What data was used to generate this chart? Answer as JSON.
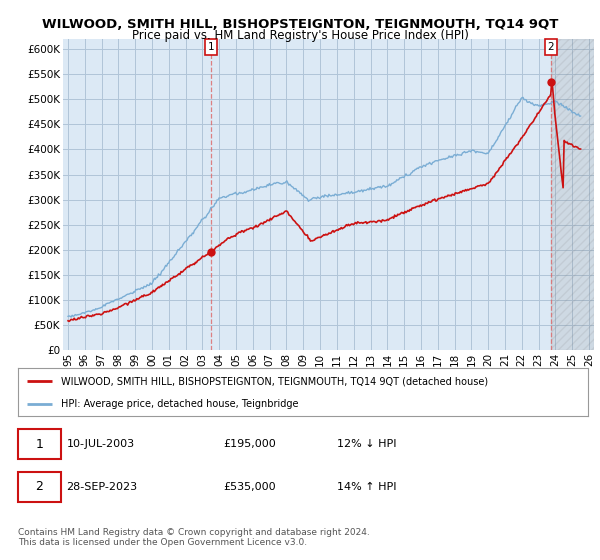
{
  "title": "WILWOOD, SMITH HILL, BISHOPSTEIGNTON, TEIGNMOUTH, TQ14 9QT",
  "subtitle": "Price paid vs. HM Land Registry's House Price Index (HPI)",
  "ylabel_ticks": [
    "£0",
    "£50K",
    "£100K",
    "£150K",
    "£200K",
    "£250K",
    "£300K",
    "£350K",
    "£400K",
    "£450K",
    "£500K",
    "£550K",
    "£600K"
  ],
  "ytick_values": [
    0,
    50000,
    100000,
    150000,
    200000,
    250000,
    300000,
    350000,
    400000,
    450000,
    500000,
    550000,
    600000
  ],
  "ylim": [
    0,
    620000
  ],
  "xlim_start": 1994.7,
  "xlim_end": 2026.3,
  "xtick_years": [
    1995,
    1996,
    1997,
    1998,
    1999,
    2000,
    2001,
    2002,
    2003,
    2004,
    2005,
    2006,
    2007,
    2008,
    2009,
    2010,
    2011,
    2012,
    2013,
    2014,
    2015,
    2016,
    2017,
    2018,
    2019,
    2020,
    2021,
    2022,
    2023,
    2024,
    2025,
    2026
  ],
  "purchase1_year": 2003.53,
  "purchase1_price": 195000,
  "purchase1_label": "1",
  "purchase2_year": 2023.74,
  "purchase2_price": 535000,
  "purchase2_label": "2",
  "legend_line1": "WILWOOD, SMITH HILL, BISHOPSTEIGNTON, TEIGNMOUTH, TQ14 9QT (detached house)",
  "legend_line2": "HPI: Average price, detached house, Teignbridge",
  "footer": "Contains HM Land Registry data © Crown copyright and database right 2024.\nThis data is licensed under the Open Government Licence v3.0.",
  "bg_color": "#ffffff",
  "chart_bg_color": "#dce9f5",
  "grid_color": "#b0c4d8",
  "hpi_color": "#7aadd4",
  "price_color": "#cc1111",
  "vline_color": "#dd6666"
}
